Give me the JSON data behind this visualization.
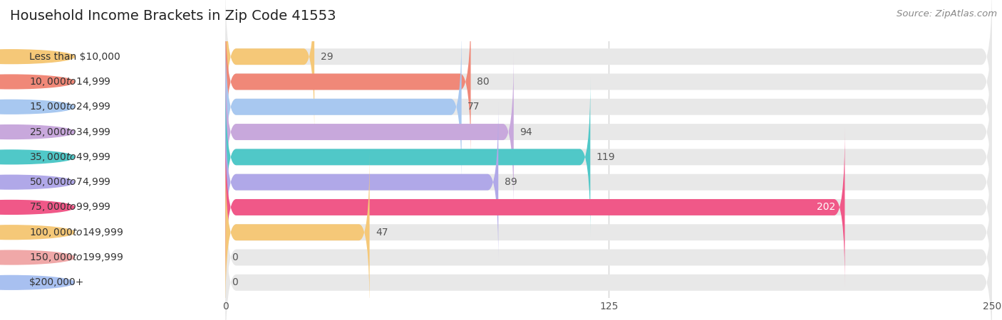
{
  "title": "Household Income Brackets in Zip Code 41553",
  "source": "Source: ZipAtlas.com",
  "categories": [
    "Less than $10,000",
    "$10,000 to $14,999",
    "$15,000 to $24,999",
    "$25,000 to $34,999",
    "$35,000 to $49,999",
    "$50,000 to $74,999",
    "$75,000 to $99,999",
    "$100,000 to $149,999",
    "$150,000 to $199,999",
    "$200,000+"
  ],
  "values": [
    29,
    80,
    77,
    94,
    119,
    89,
    202,
    47,
    0,
    0
  ],
  "bar_colors": [
    "#F5C878",
    "#F08878",
    "#A8C8F0",
    "#C8A8DC",
    "#50C8C8",
    "#B0A8E8",
    "#F05888",
    "#F5C878",
    "#F0A8A8",
    "#A8C0F0"
  ],
  "xlim_max": 250,
  "xticks": [
    0,
    125,
    250
  ],
  "background_color": "#ffffff",
  "row_bg_even": "#f0f0f0",
  "row_bg_odd": "#f8f8f8",
  "bar_bg_color": "#e8e8e8",
  "title_fontsize": 14,
  "label_fontsize": 10,
  "value_fontsize": 10,
  "source_fontsize": 9.5
}
